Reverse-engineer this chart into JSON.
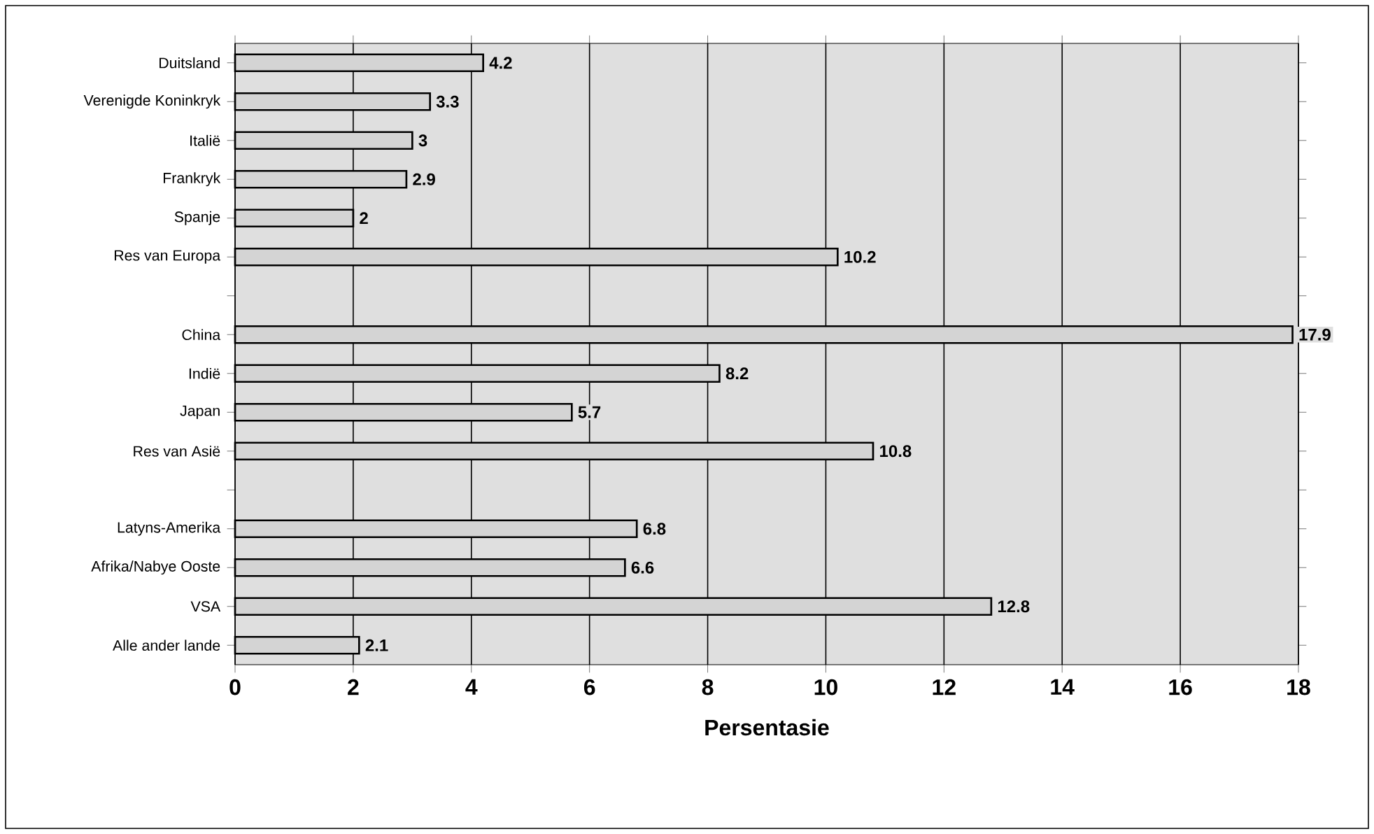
{
  "chart_data": {
    "type": "bar",
    "orientation": "horizontal",
    "xlabel": "Persentasie",
    "categories": [
      "Duitsland",
      "Verenigde Koninkryk",
      "Italië",
      "Frankryk",
      "Spanje",
      "Res van Europa",
      null,
      "China",
      "Indië",
      "Japan",
      "Res van Asië",
      null,
      "Latyns-Amerika",
      "Afrika/Nabye Ooste",
      "VSA",
      "Alle ander lande"
    ],
    "values": [
      4.2,
      3.3,
      3,
      2.9,
      2,
      10.2,
      null,
      17.9,
      8.2,
      5.7,
      10.8,
      null,
      6.8,
      6.6,
      12.8,
      2.1
    ],
    "color": "#d4d4d4",
    "xlim": [
      0,
      18
    ],
    "xticks": [
      0,
      2,
      4,
      6,
      8,
      10,
      12,
      14,
      16,
      18
    ],
    "grid": "x",
    "data_labels": true
  }
}
